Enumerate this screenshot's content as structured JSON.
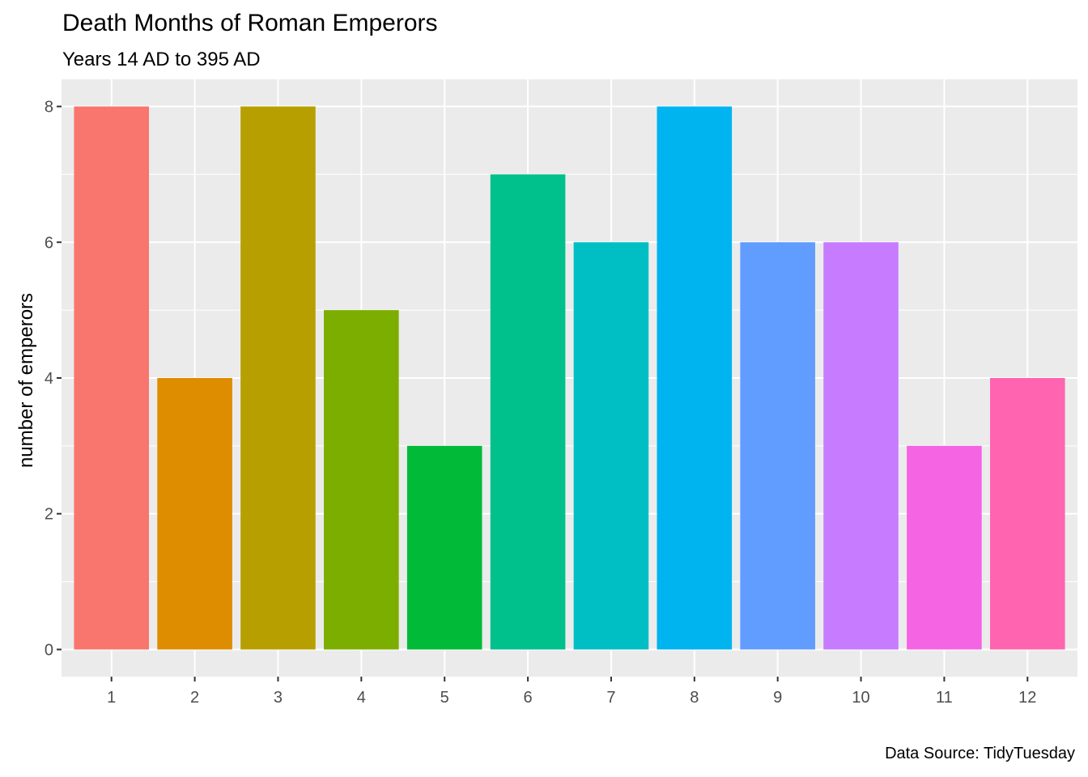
{
  "chart_data": {
    "type": "bar",
    "title": "Death Months of Roman Emperors",
    "subtitle": "Years 14 AD to 395 AD",
    "caption": "Data Source: TidyTuesday",
    "xlabel": "",
    "ylabel": "number of emperors",
    "categories": [
      "1",
      "2",
      "3",
      "4",
      "5",
      "6",
      "7",
      "8",
      "9",
      "10",
      "11",
      "12"
    ],
    "values": [
      8,
      4,
      8,
      5,
      3,
      7,
      6,
      8,
      6,
      6,
      3,
      4
    ],
    "colors": [
      "#F8766D",
      "#DE8C00",
      "#B79F00",
      "#7CAE00",
      "#00BA38",
      "#00C08B",
      "#00BFC4",
      "#00B4F0",
      "#619CFF",
      "#C77CFF",
      "#F564E3",
      "#FF64B0"
    ],
    "yticks": [
      0,
      2,
      4,
      6,
      8
    ],
    "ylim": [
      -0.4,
      8.4
    ],
    "grid": true,
    "legend": "none",
    "panel_background": "#EBEBEB"
  }
}
